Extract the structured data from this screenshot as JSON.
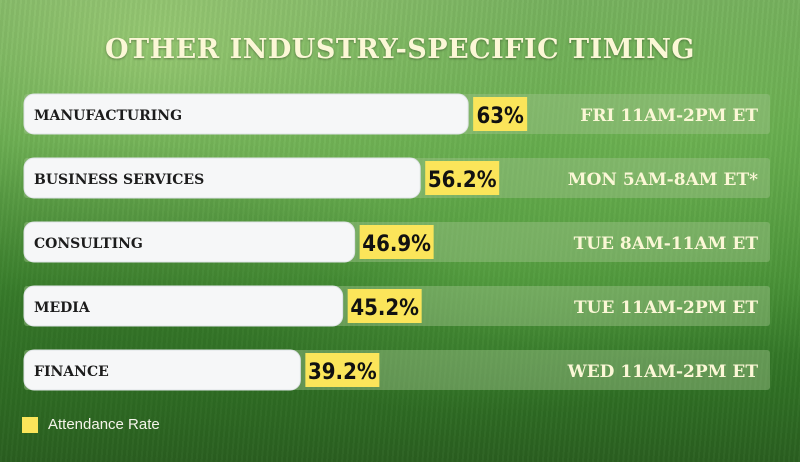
{
  "chart_data": {
    "type": "bar",
    "orientation": "horizontal",
    "title": "OTHER INDUSTRY-SPECIFIC TIMING",
    "categories": [
      "MANUFACTURING",
      "BUSINESS SERVICES",
      "CONSULTING",
      "MEDIA",
      "FINANCE"
    ],
    "series": [
      {
        "name": "Attendance Rate",
        "values": [
          63,
          56.2,
          46.9,
          45.2,
          39.2
        ],
        "labels": [
          "63%",
          "56.2%",
          "46.9%",
          "45.2%",
          "39.2%"
        ]
      }
    ],
    "timing": [
      "FRI 11AM-2PM ET",
      "MON 5AM-8AM ET*",
      "TUE 8AM-11AM ET",
      "TUE 11AM-2PM ET",
      "WED 11AM-2PM ET"
    ],
    "legend_position": "bottom-left",
    "colors": {
      "bar": "#f6f7f8",
      "value_box": "#fbe55a",
      "track": "#9fc48c"
    }
  }
}
